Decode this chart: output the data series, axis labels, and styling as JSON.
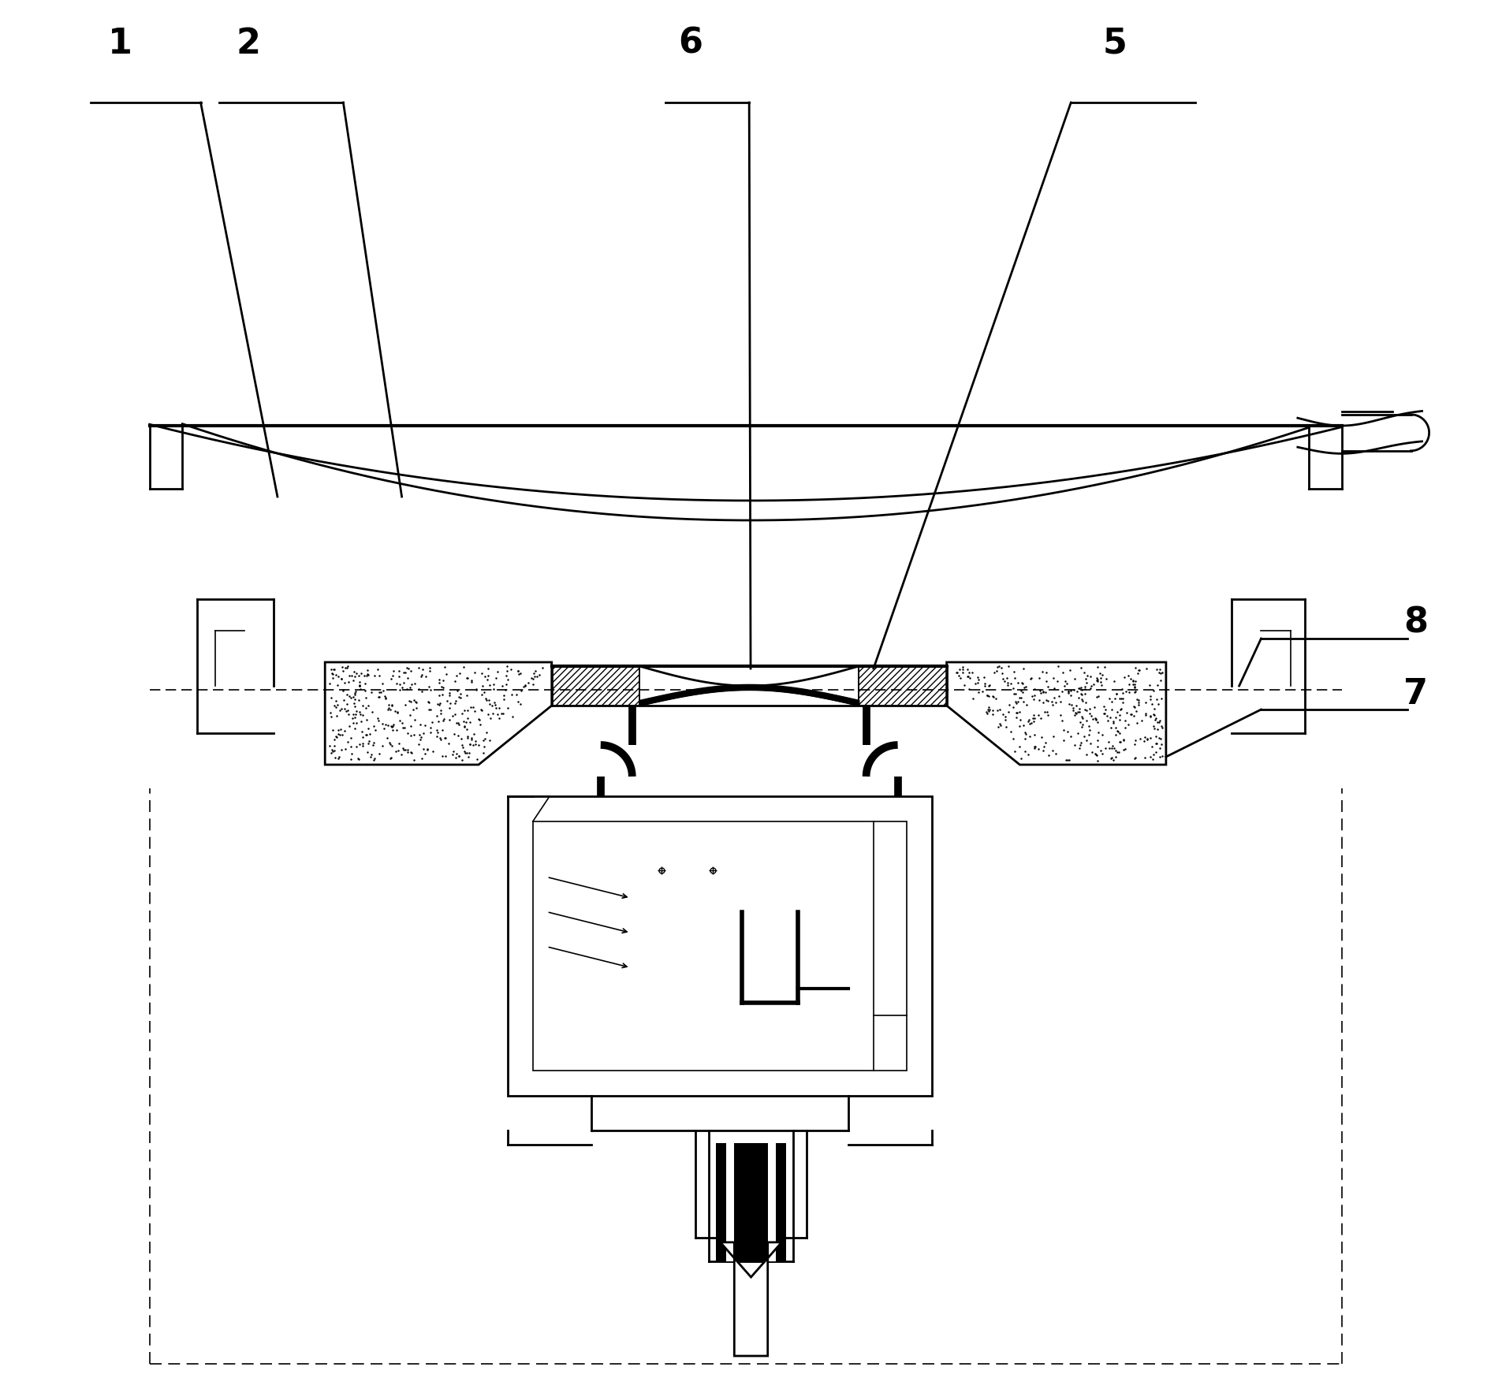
{
  "background": "#ffffff",
  "lc": "#000000",
  "lw": 2.0,
  "lwt": 3.0,
  "lwn": 1.2,
  "fs": 32,
  "pipe_lw": 7
}
